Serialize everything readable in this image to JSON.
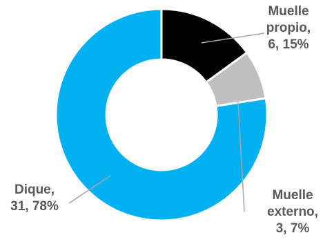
{
  "chart_data": {
    "type": "pie",
    "title": "",
    "categories": [
      "Muelle propio",
      "Muelle externo",
      "Dique"
    ],
    "values": [
      6,
      3,
      31
    ],
    "percentages": [
      15,
      7,
      78
    ],
    "data_labels": [
      [
        "Muelle",
        "propio,",
        "6, 15%"
      ],
      [
        "Muelle",
        "externo,",
        "3, 7%"
      ],
      [
        "Dique,",
        "31, 78%"
      ]
    ],
    "colors": [
      "#000000",
      "#bfbfbf",
      "#00b0f0"
    ],
    "donut": true,
    "legend": "none"
  }
}
